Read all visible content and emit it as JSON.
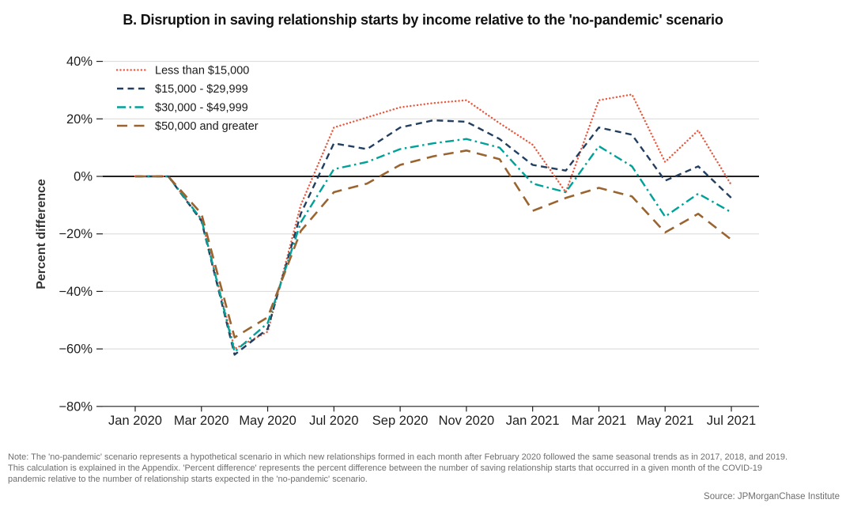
{
  "page": {
    "title": "B. Disruption in saving relationship starts by income relative to the 'no-pandemic' scenario",
    "note": "Note: The 'no-pandemic' scenario represents a hypothetical scenario in which new relationships formed in each month after February 2020 followed the same seasonal trends as in 2017, 2018, and 2019. This calculation is explained in the Appendix. 'Percent difference' represents the percent difference between the number of saving relationship starts that occurred in a given month of the COVID-19 pandemic relative to the number of relationship starts expected in the 'no-pandemic' scenario.",
    "source": "Source: JPMorganChase Institute"
  },
  "chart_data": {
    "type": "line",
    "title": "B. Disruption in saving relationship starts by income relative to the 'no-pandemic' scenario",
    "xlabel": "",
    "ylabel": "Percent difference",
    "ylim": [
      -80,
      40
    ],
    "grid": true,
    "legend_position": "top-left",
    "yticks": [
      {
        "value": 40,
        "label": "40%"
      },
      {
        "value": 20,
        "label": "20%"
      },
      {
        "value": 0,
        "label": "0%"
      },
      {
        "value": -20,
        "label": "−20%"
      },
      {
        "value": -40,
        "label": "−40%"
      },
      {
        "value": -60,
        "label": "−60%"
      },
      {
        "value": -80,
        "label": "−80%"
      }
    ],
    "x": [
      "Jan 2020",
      "Feb 2020",
      "Mar 2020",
      "Apr 2020",
      "May 2020",
      "Jun 2020",
      "Jul 2020",
      "Aug 2020",
      "Sep 2020",
      "Oct 2020",
      "Nov 2020",
      "Dec 2020",
      "Jan 2021",
      "Feb 2021",
      "Mar 2021",
      "Apr 2021",
      "May 2021",
      "Jun 2021",
      "Jul 2021"
    ],
    "xtick_indices": [
      0,
      2,
      4,
      6,
      8,
      10,
      12,
      14,
      16,
      18
    ],
    "xtick_labels": [
      "Jan 2020",
      "Mar 2020",
      "May 2020",
      "Jul 2020",
      "Sep 2020",
      "Nov 2020",
      "Jan 2021",
      "Mar 2021",
      "May 2021",
      "Jul 2021"
    ],
    "series": [
      {
        "name": "Less than $15,000",
        "color": "#E75A41",
        "style": "dotted",
        "values": [
          0,
          0,
          -15,
          -60,
          -54,
          -10,
          17,
          20.5,
          24,
          25.5,
          26.5,
          18.5,
          11,
          -5.5,
          26.5,
          28.5,
          5,
          16,
          -3
        ]
      },
      {
        "name": "$15,000 - $29,999",
        "color": "#223F60",
        "style": "dashed",
        "values": [
          0,
          0,
          -15.5,
          -62,
          -53,
          -13,
          11.5,
          9.5,
          17,
          19.5,
          19,
          13,
          4,
          2,
          17,
          14.5,
          -1.5,
          3.5,
          -7.5
        ]
      },
      {
        "name": "$30,000 - $49,999",
        "color": "#00A198",
        "style": "dashdot",
        "values": [
          0,
          0,
          -15,
          -61,
          -51,
          -16,
          2.5,
          5,
          9.5,
          11.5,
          13,
          10,
          -2.5,
          -5.5,
          10.5,
          3.5,
          -14,
          -6,
          -12.5
        ]
      },
      {
        "name": "$50,000 and greater",
        "color": "#9A6430",
        "style": "longdash",
        "values": [
          0,
          0,
          -13,
          -56,
          -49,
          -19,
          -5.5,
          -2.5,
          4,
          7,
          9,
          6,
          -12,
          -7.5,
          -4,
          -7,
          -19.5,
          -13,
          -22
        ]
      }
    ],
    "colors": {
      "grid": "#D8D8D8",
      "zero_line": "#000000",
      "axis": "#1F1F1F",
      "tick_text": "#1F1F1F",
      "legend_text": "#1A1A1A",
      "note_text": "#6E6E6E"
    }
  }
}
